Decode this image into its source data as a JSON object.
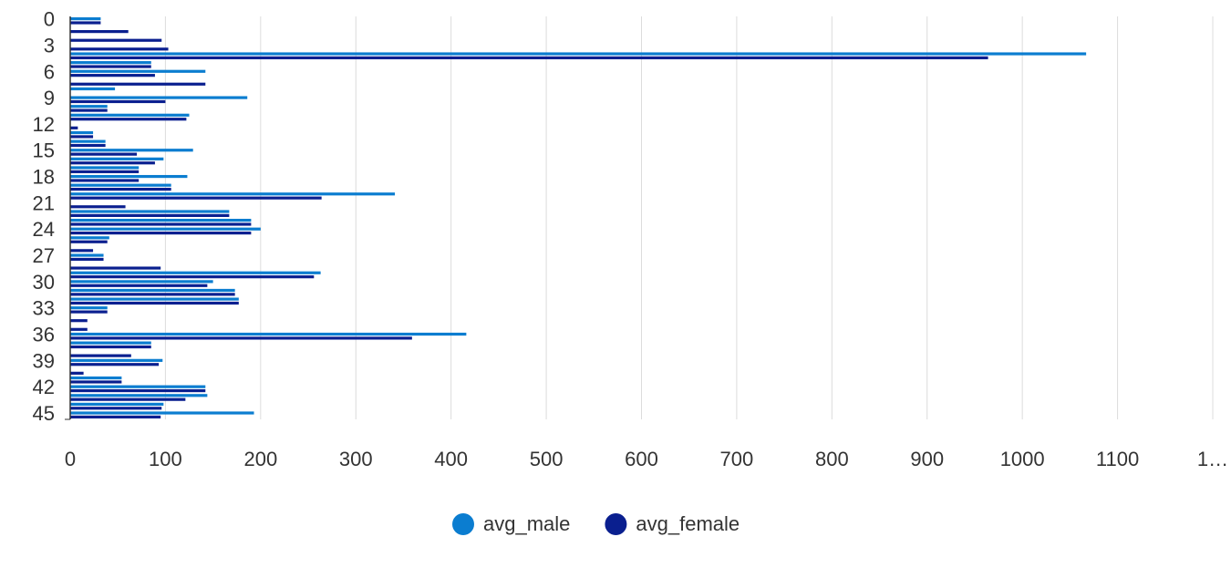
{
  "chart_data": {
    "type": "hbar",
    "categories": [
      "0",
      null,
      null,
      "3",
      null,
      null,
      "6",
      null,
      null,
      "9",
      null,
      null,
      "12",
      null,
      null,
      "15",
      null,
      null,
      "18",
      null,
      null,
      "21",
      null,
      null,
      "24",
      null,
      null,
      "27",
      null,
      null,
      "30",
      null,
      null,
      "33",
      null,
      null,
      "36",
      null,
      null,
      "39",
      null,
      null,
      "42",
      null,
      null,
      "45"
    ],
    "series": [
      {
        "name": "avg_male",
        "color": "#0b7dd0",
        "values": [
          32,
          0,
          0,
          0,
          1067,
          85,
          142,
          0,
          47,
          186,
          39,
          125,
          0,
          24,
          37,
          129,
          98,
          72,
          123,
          106,
          341,
          0,
          167,
          190,
          200,
          41,
          0,
          35,
          0,
          263,
          150,
          173,
          177,
          39,
          0,
          0,
          416,
          85,
          0,
          97,
          0,
          54,
          142,
          144,
          98,
          193
        ]
      },
      {
        "name": "avg_female",
        "color": "#0a1f8f",
        "values": [
          32,
          61,
          96,
          103,
          964,
          85,
          89,
          142,
          0,
          100,
          39,
          122,
          8,
          24,
          37,
          70,
          89,
          72,
          72,
          106,
          264,
          58,
          167,
          190,
          190,
          39,
          24,
          35,
          95,
          256,
          144,
          173,
          177,
          39,
          18,
          18,
          359,
          85,
          64,
          93,
          14,
          54,
          142,
          121,
          96,
          95
        ]
      }
    ],
    "xlim": [
      0,
      1200
    ],
    "xticks": [
      0,
      100,
      200,
      300,
      400,
      500,
      600,
      700,
      800,
      900,
      1000,
      1100,
      {
        "value": 1200,
        "label": "1…"
      }
    ],
    "grid": true,
    "legend": "bottom"
  }
}
